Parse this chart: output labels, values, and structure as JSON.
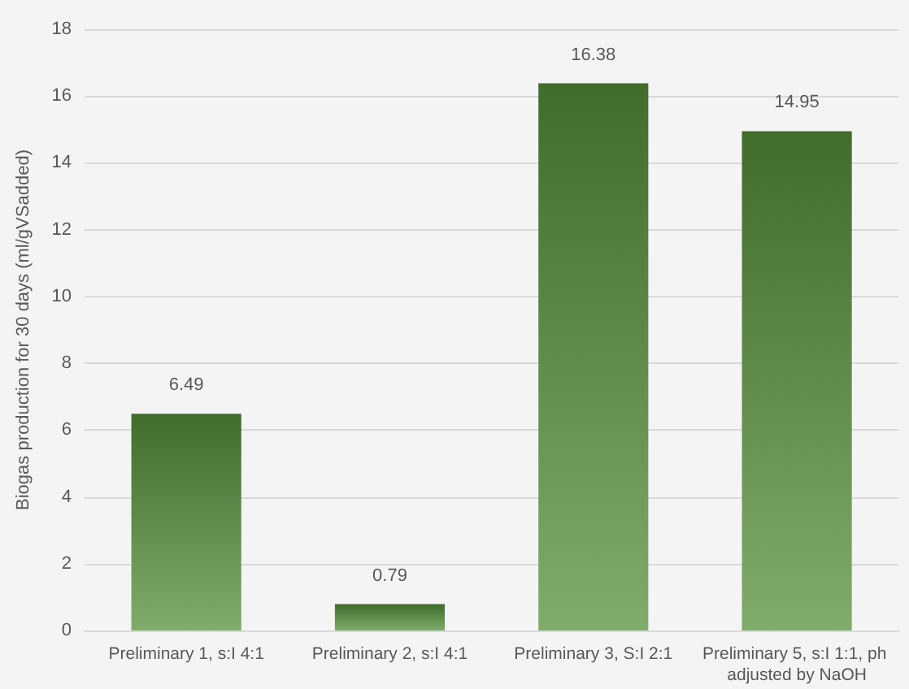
{
  "chart_data": {
    "type": "bar",
    "ylabel": "Biogas production for 30 days (ml/gVSadded)",
    "categories": [
      "Preliminary 1, s:I 4:1",
      "Preliminary 2, s:I 4:1",
      "Preliminary 3, S:I 2:1",
      "Preliminary 5, s:I 1:1, ph adjusted by NaOH"
    ],
    "values": [
      6.49,
      0.79,
      16.38,
      14.95
    ],
    "color": "#55903a",
    "ylim": [
      0,
      18
    ],
    "yticks": [
      0,
      2,
      4,
      6,
      8,
      10,
      12,
      14,
      16,
      18
    ],
    "grid": "y",
    "data_labels": true
  }
}
